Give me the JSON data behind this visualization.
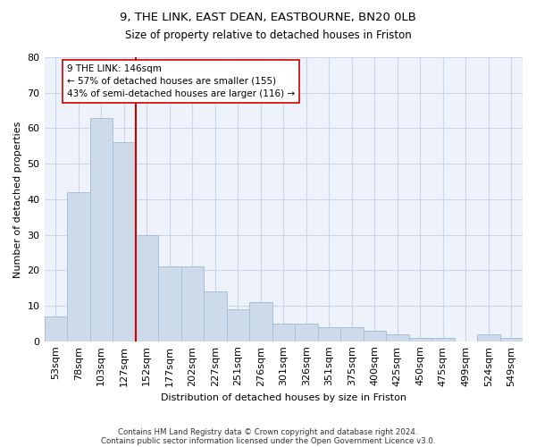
{
  "title1": "9, THE LINK, EAST DEAN, EASTBOURNE, BN20 0LB",
  "title2": "Size of property relative to detached houses in Friston",
  "xlabel": "Distribution of detached houses by size in Friston",
  "ylabel": "Number of detached properties",
  "categories": [
    "53sqm",
    "78sqm",
    "103sqm",
    "127sqm",
    "152sqm",
    "177sqm",
    "202sqm",
    "227sqm",
    "251sqm",
    "276sqm",
    "301sqm",
    "326sqm",
    "351sqm",
    "375sqm",
    "400sqm",
    "425sqm",
    "450sqm",
    "475sqm",
    "499sqm",
    "524sqm",
    "549sqm"
  ],
  "values": [
    7,
    42,
    63,
    56,
    30,
    21,
    21,
    14,
    9,
    11,
    5,
    5,
    4,
    4,
    3,
    2,
    1,
    1,
    0,
    2,
    1
  ],
  "bar_color": "#ccdaea",
  "bar_edge_color": "#a8c0d8",
  "vline_x": 3.5,
  "vline_color": "#cc0000",
  "annotation_text": "9 THE LINK: 146sqm\n← 57% of detached houses are smaller (155)\n43% of semi-detached houses are larger (116) →",
  "annotation_box_color": "white",
  "annotation_box_edge_color": "#cc0000",
  "ylim": [
    0,
    80
  ],
  "yticks": [
    0,
    10,
    20,
    30,
    40,
    50,
    60,
    70,
    80
  ],
  "footer1": "Contains HM Land Registry data © Crown copyright and database right 2024.",
  "footer2": "Contains public sector information licensed under the Open Government Licence v3.0.",
  "grid_color": "#c8d4e8",
  "background_color": "#eef2fa"
}
